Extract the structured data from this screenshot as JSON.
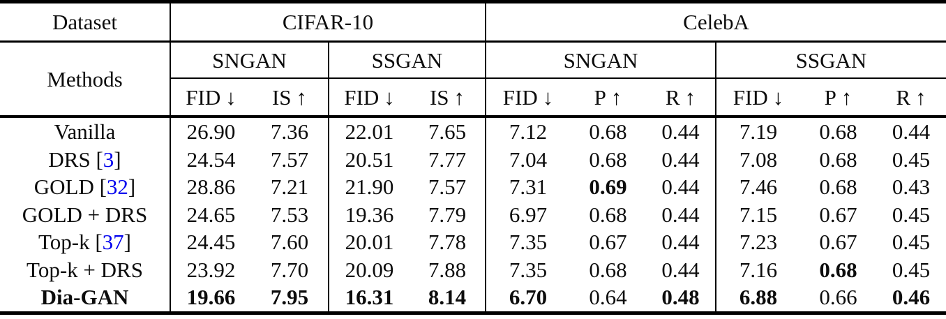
{
  "header": {
    "dataset_label": "Dataset",
    "methods_label": "Methods",
    "dataset_groups": [
      {
        "name": "CIFAR-10"
      },
      {
        "name": "CelebA"
      }
    ],
    "model_groups": [
      {
        "name": "SNGAN"
      },
      {
        "name": "SSGAN"
      },
      {
        "name": "SNGAN"
      },
      {
        "name": "SSGAN"
      }
    ],
    "metrics": [
      {
        "name": "FID",
        "arrow": "↓"
      },
      {
        "name": "IS",
        "arrow": "↑"
      },
      {
        "name": "FID",
        "arrow": "↓"
      },
      {
        "name": "IS",
        "arrow": "↑"
      },
      {
        "name": "FID",
        "arrow": "↓"
      },
      {
        "name": "P",
        "arrow": "↑"
      },
      {
        "name": "R",
        "arrow": "↑"
      },
      {
        "name": "FID",
        "arrow": "↓"
      },
      {
        "name": "P",
        "arrow": "↑"
      },
      {
        "name": "R",
        "arrow": "↑"
      }
    ]
  },
  "colors": {
    "text": "#0c0c0c",
    "citation_blue": "#0000EE",
    "rule_black": "#000000"
  },
  "rows": [
    {
      "label_pre": "Vanilla",
      "cite": "",
      "label_post": "",
      "values": [
        "26.90",
        "7.36",
        "22.01",
        "7.65",
        "7.12",
        "0.68",
        "0.44",
        "7.19",
        "0.68",
        "0.44"
      ]
    },
    {
      "label_pre": "DRS [",
      "cite": "3",
      "label_post": "]",
      "values": [
        "24.54",
        "7.57",
        "20.51",
        "7.77",
        "7.04",
        "0.68",
        "0.44",
        "7.08",
        "0.68",
        "0.45"
      ]
    },
    {
      "label_pre": "GOLD [",
      "cite": "32",
      "label_post": "]",
      "values": [
        "28.86",
        "7.21",
        "21.90",
        "7.57",
        "7.31",
        "0.69",
        "0.44",
        "7.46",
        "0.68",
        "0.43"
      ]
    },
    {
      "label_pre": "GOLD + DRS",
      "cite": "",
      "label_post": "",
      "values": [
        "24.65",
        "7.53",
        "19.36",
        "7.79",
        "6.97",
        "0.68",
        "0.44",
        "7.15",
        "0.67",
        "0.45"
      ]
    },
    {
      "label_pre": "Top-k [",
      "cite": "37",
      "label_post": "]",
      "values": [
        "24.45",
        "7.60",
        "20.01",
        "7.78",
        "7.35",
        "0.67",
        "0.44",
        "7.23",
        "0.67",
        "0.45"
      ]
    },
    {
      "label_pre": "Top-k + DRS",
      "cite": "",
      "label_post": "",
      "values": [
        "23.92",
        "7.70",
        "20.09",
        "7.88",
        "7.35",
        "0.68",
        "0.44",
        "7.16",
        "0.68",
        "0.45"
      ]
    },
    {
      "label_pre": "Dia-GAN",
      "cite": "",
      "label_post": "",
      "values": [
        "19.66",
        "7.95",
        "16.31",
        "8.14",
        "6.70",
        "0.64",
        "0.48",
        "6.88",
        "0.66",
        "0.46"
      ]
    }
  ]
}
